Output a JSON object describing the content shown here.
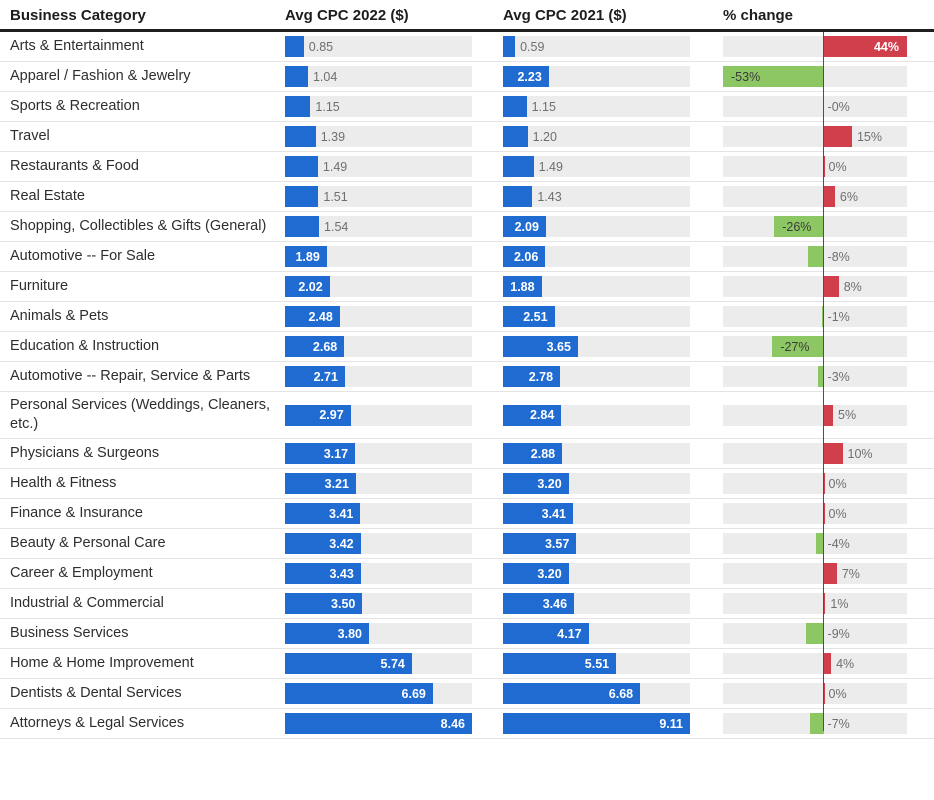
{
  "chart_data": {
    "type": "bar",
    "title": "",
    "columns": [
      "Business Category",
      "Avg CPC 2022 ($)",
      "Avg CPC 2021 ($)",
      "% change"
    ],
    "categories": [
      "Arts & Entertainment",
      "Apparel / Fashion & Jewelry",
      "Sports & Recreation",
      "Travel",
      "Restaurants & Food",
      "Real Estate",
      "Shopping, Collectibles & Gifts (General)",
      "Automotive -- For Sale",
      "Furniture",
      "Animals & Pets",
      "Education & Instruction",
      "Automotive -- Repair, Service & Parts",
      "Personal Services (Weddings, Cleaners, etc.)",
      "Physicians & Surgeons",
      "Health & Fitness",
      "Finance & Insurance",
      "Beauty & Personal Care",
      "Career & Employment",
      "Industrial & Commercial",
      "Business Services",
      "Home & Home Improvement",
      "Dentists & Dental Services",
      "Attorneys & Legal Services"
    ],
    "series": [
      {
        "name": "Avg CPC 2022 ($)",
        "values": [
          0.85,
          1.04,
          1.15,
          1.39,
          1.49,
          1.51,
          1.54,
          1.89,
          2.02,
          2.48,
          2.68,
          2.71,
          2.97,
          3.17,
          3.21,
          3.41,
          3.42,
          3.43,
          3.5,
          3.8,
          5.74,
          6.69,
          8.46
        ],
        "labels": [
          "0.85",
          "1.04",
          "1.15",
          "1.39",
          "1.49",
          "1.51",
          "1.54",
          "1.89",
          "2.02",
          "2.48",
          "2.68",
          "2.71",
          "2.97",
          "3.17",
          "3.21",
          "3.41",
          "3.42",
          "3.43",
          "3.50",
          "3.80",
          "5.74",
          "6.69",
          "8.46"
        ]
      },
      {
        "name": "Avg CPC 2021 ($)",
        "values": [
          0.59,
          2.23,
          1.15,
          1.2,
          1.49,
          1.43,
          2.09,
          2.06,
          1.88,
          2.51,
          3.65,
          2.78,
          2.84,
          2.88,
          3.2,
          3.41,
          3.57,
          3.2,
          3.46,
          4.17,
          5.51,
          6.68,
          9.11
        ],
        "labels": [
          "0.59",
          "2.23",
          "1.15",
          "1.20",
          "1.49",
          "1.43",
          "2.09",
          "2.06",
          "1.88",
          "2.51",
          "3.65",
          "2.78",
          "2.84",
          "2.88",
          "3.20",
          "3.41",
          "3.57",
          "3.20",
          "3.46",
          "4.17",
          "5.51",
          "6.68",
          "9.11"
        ]
      },
      {
        "name": "% change",
        "values": [
          44,
          -53,
          0,
          15,
          0,
          6,
          -26,
          -8,
          8,
          -1,
          -27,
          -3,
          5,
          10,
          0,
          0,
          -4,
          7,
          1,
          -9,
          4,
          0,
          -7
        ],
        "labels": [
          "44%",
          "-53%",
          "-0%",
          "15%",
          "0%",
          "6%",
          "-26%",
          "-8%",
          "8%",
          "-1%",
          "-27%",
          "-3%",
          "5%",
          "10%",
          "0%",
          "0%",
          "-4%",
          "7%",
          "1%",
          "-9%",
          "4%",
          "0%",
          "-7%"
        ]
      }
    ],
    "layout": {
      "axis_ranges": {
        "cpc_2022_max": 8.46,
        "cpc_2021_max": 9.11,
        "pct_min": -53,
        "pct_max": 44
      },
      "grid": "off",
      "legend": "none",
      "zero_line": true
    },
    "colors": {
      "bar_blue": "#1f6bd2",
      "increase_red": "#d23f4c",
      "decrease_green": "#8cc763",
      "track_gray": "#ececec",
      "zero_line": "#4f4f4f",
      "value_gray": "#6f6f6f"
    }
  }
}
